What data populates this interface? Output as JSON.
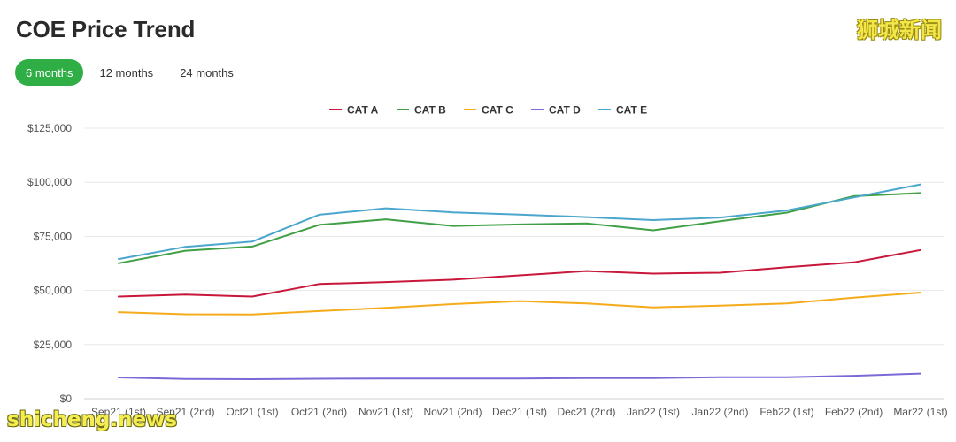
{
  "header": {
    "title": "COE Price Trend",
    "tabs": [
      {
        "label": "6 months",
        "active": true
      },
      {
        "label": "12 months",
        "active": false
      },
      {
        "label": "24 months",
        "active": false
      }
    ]
  },
  "watermarks": {
    "top": "狮城新闻",
    "bottom": "shicheng.news"
  },
  "chart_data": {
    "type": "line",
    "title": "",
    "xlabel": "",
    "ylabel": "",
    "ylim": [
      0,
      125000
    ],
    "yticks": [
      0,
      25000,
      50000,
      75000,
      100000,
      125000
    ],
    "ytick_labels": [
      "$0",
      "$25,000",
      "$50,000",
      "$75,000",
      "$100,000",
      "$125,000"
    ],
    "grid": true,
    "legend_position": "top-center",
    "categories": [
      "Sep21 (1st)",
      "Sep21 (2nd)",
      "Oct21 (1st)",
      "Oct21 (2nd)",
      "Nov21 (1st)",
      "Nov21 (2nd)",
      "Dec21 (1st)",
      "Dec21 (2nd)",
      "Jan22 (1st)",
      "Jan22 (2nd)",
      "Feb22 (1st)",
      "Feb22 (2nd)",
      "Mar22 (1st)"
    ],
    "series": [
      {
        "name": "CAT A",
        "color": "#c8173a",
        "values": [
          47200,
          48100,
          47200,
          53000,
          53900,
          55000,
          57000,
          59000,
          57800,
          58200,
          60800,
          63000,
          68700
        ]
      },
      {
        "name": "CAT B",
        "color": "#41a046",
        "values": [
          62600,
          68400,
          70300,
          80300,
          82900,
          79800,
          80500,
          81000,
          77800,
          82000,
          86000,
          93600,
          95000
        ]
      },
      {
        "name": "CAT C",
        "color": "#f5ab1a",
        "values": [
          40000,
          39000,
          38900,
          40500,
          42000,
          43700,
          45100,
          44000,
          42200,
          43000,
          44000,
          46700,
          49000
        ]
      },
      {
        "name": "CAT D",
        "color": "#7c68d6",
        "values": [
          9800,
          9100,
          9000,
          9200,
          9300,
          9300,
          9300,
          9500,
          9500,
          9900,
          9900,
          10600,
          11600
        ]
      },
      {
        "name": "CAT E",
        "color": "#4aa6cc",
        "values": [
          64500,
          70200,
          72600,
          85000,
          88000,
          86100,
          85100,
          83900,
          82500,
          83700,
          87000,
          93000,
          99000
        ]
      }
    ]
  }
}
